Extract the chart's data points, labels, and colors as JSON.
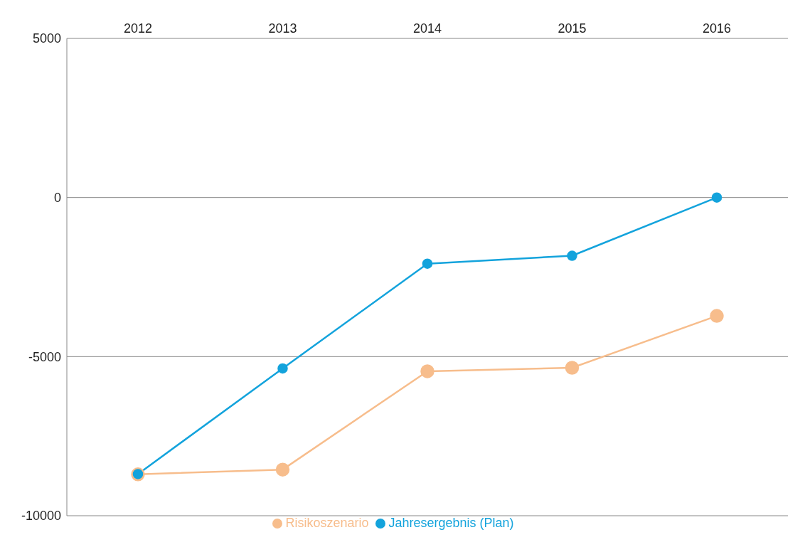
{
  "chart_data": {
    "type": "line",
    "categories": [
      "2012",
      "2013",
      "2014",
      "2015",
      "2016"
    ],
    "series": [
      {
        "name": "Risikoszenario",
        "color": "#f7bd8c",
        "values": [
          -8700,
          -8550,
          -5460,
          -5350,
          -3720
        ]
      },
      {
        "name": "Jahresergebnis (Plan)",
        "color": "#13a3dc",
        "values": [
          -8690,
          -5370,
          -2080,
          -1830,
          0
        ]
      }
    ],
    "ylim": [
      -10000,
      5000
    ],
    "yticks": [
      -10000,
      -5000,
      0,
      5000
    ],
    "grid": "y",
    "legend": "bottom",
    "marker": "circle",
    "line_style": "solid"
  }
}
